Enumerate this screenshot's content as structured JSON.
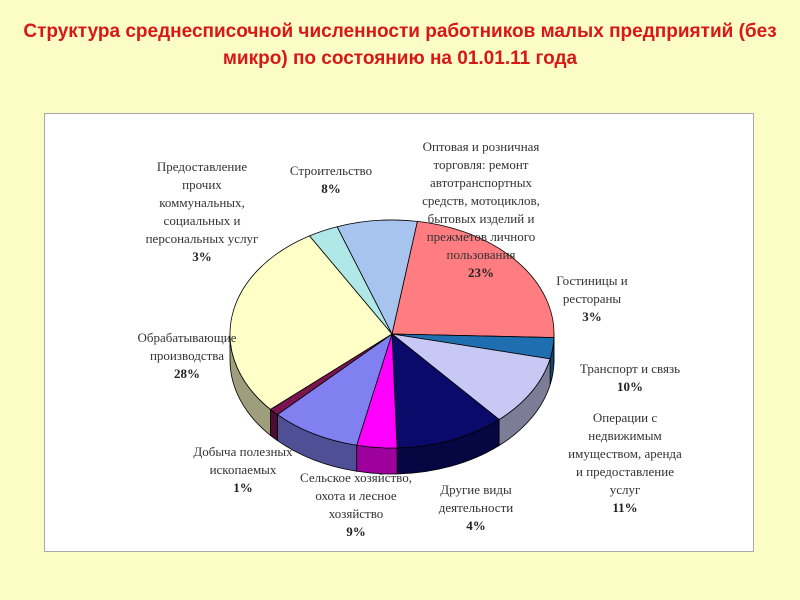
{
  "title": "Структура среднесписочной численности работников  малых предприятий  (без микро)   по состоянию на 01.01.11 года",
  "chart_data": {
    "type": "pie",
    "title": "Структура среднесписочной численности работников  малых предприятий  (без микро)   по состоянию на 01.01.11 года",
    "unit": "%",
    "slices": [
      {
        "name": "Оптовая и розничная торговля: ремонт автотранспортных средств, мотоциклов, бытовых изделий и прежметов личного пользования",
        "value": 23,
        "label": "23%",
        "color": "#FF7C80"
      },
      {
        "name": "Гостиницы и рестораны",
        "value": 3,
        "label": "3%",
        "color": "#1F6FB0"
      },
      {
        "name": "Транспорт и связь",
        "value": 10,
        "label": "10%",
        "color": "#C8C8F4"
      },
      {
        "name": "Операции с недвижимым имуществом, аренда и предоставление услуг",
        "value": 11,
        "label": "11%",
        "color": "#0A0A6A"
      },
      {
        "name": "Другие виды деятельности",
        "value": 4,
        "label": "4%",
        "color": "#FF00FF"
      },
      {
        "name": "Сельское хозяйство, охота и лесное хозяйство",
        "value": 9,
        "label": "9%",
        "color": "#8080F0"
      },
      {
        "name": "Добыча полезных ископаемых",
        "value": 1,
        "label": "1%",
        "color": "#7A1550"
      },
      {
        "name": "Обрабатывающие производства",
        "value": 28,
        "label": "28%",
        "color": "#FFFFC8"
      },
      {
        "name": "Предоставление прочих коммунальных, социальных и персональных услуг",
        "value": 3,
        "label": "3%",
        "color": "#B0E8E8"
      },
      {
        "name": "Строительство",
        "value": 8,
        "label": "8%",
        "color": "#A6C4EE"
      }
    ],
    "label_lines": [
      [
        "Оптовая и розничная",
        "торговля: ремонт",
        "автотранспортных",
        "средств, мотоциклов,",
        "бытовых изделий и",
        "прежметов личного",
        "пользования"
      ],
      [
        "Гостиницы и",
        "рестораны"
      ],
      [
        "Транспорт и связь"
      ],
      [
        "Операции с",
        "недвижимым",
        "имуществом, аренда",
        "и предоставление",
        "услуг"
      ],
      [
        "Другие виды",
        "деятельности"
      ],
      [
        "Сельское хозяйство,",
        "охота и лесное",
        "хозяйство"
      ],
      [
        "Добыча полезных",
        "ископаемых"
      ],
      [
        "Обрабатывающие",
        "производства"
      ],
      [
        "Предоставление",
        "прочих",
        "коммунальных,",
        "социальных и",
        "персональных услуг"
      ],
      [
        "Строительство"
      ]
    ]
  }
}
